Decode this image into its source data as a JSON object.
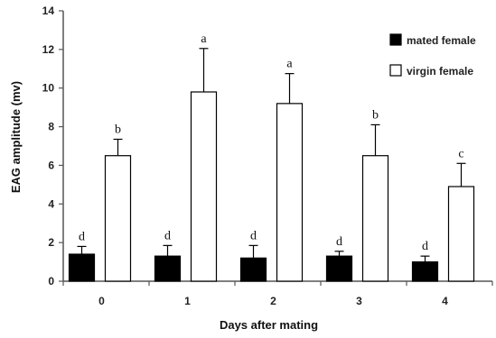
{
  "chart_data": {
    "type": "bar",
    "title": "",
    "xlabel": "Days after mating",
    "ylabel": "EAG amplitude (mv)",
    "ylim": [
      0,
      14
    ],
    "yticks": [
      0,
      2,
      4,
      6,
      8,
      10,
      12,
      14
    ],
    "categories": [
      "0",
      "1",
      "2",
      "3",
      "4"
    ],
    "series": [
      {
        "name": "mated female",
        "color": "#000000",
        "values": [
          1.4,
          1.3,
          1.2,
          1.3,
          1.0
        ],
        "errors": [
          0.4,
          0.55,
          0.65,
          0.25,
          0.3
        ],
        "letters": [
          "d",
          "d",
          "d",
          "d",
          "d"
        ]
      },
      {
        "name": "virgin female",
        "color": "#ffffff",
        "values": [
          6.5,
          9.8,
          9.2,
          6.5,
          4.9
        ],
        "errors": [
          0.85,
          2.25,
          1.55,
          1.6,
          1.2
        ],
        "letters": [
          "b",
          "a",
          "a",
          "b",
          "c"
        ]
      }
    ],
    "legend": "top-right",
    "grid": false
  }
}
